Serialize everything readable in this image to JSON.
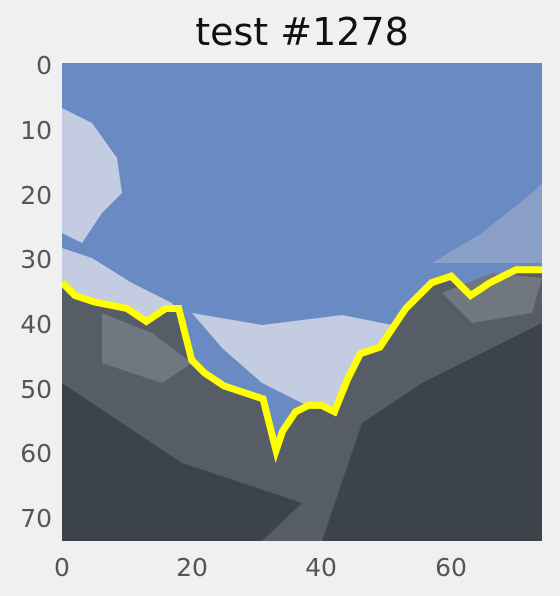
{
  "title": "test #1278",
  "colors": {
    "sky": "#6a8ac3",
    "cloud": "#c3cce0",
    "mountain_light": "#707780",
    "mountain_mid": "#565d66",
    "mountain_dark": "#3d434a",
    "boundary": "#ffff00",
    "background": "#f0f0f0"
  },
  "chart_data": {
    "type": "heatmap",
    "title": "test #1278",
    "xlabel": "",
    "ylabel": "",
    "xlim": [
      0,
      74
    ],
    "ylim": [
      74,
      0
    ],
    "xticks": [
      "0",
      "20",
      "40",
      "60"
    ],
    "yticks": [
      "0",
      "10",
      "20",
      "30",
      "40",
      "50",
      "60",
      "70"
    ],
    "grid": false,
    "boundary_line": [
      [
        0,
        34
      ],
      [
        2,
        36
      ],
      [
        5,
        37
      ],
      [
        10,
        38
      ],
      [
        13,
        40
      ],
      [
        16,
        38
      ],
      [
        18,
        38
      ],
      [
        19,
        42
      ],
      [
        20,
        46
      ],
      [
        22,
        48
      ],
      [
        25,
        50
      ],
      [
        28,
        51
      ],
      [
        31,
        52
      ],
      [
        32,
        56
      ],
      [
        33,
        60
      ],
      [
        34,
        57
      ],
      [
        36,
        54
      ],
      [
        38,
        53
      ],
      [
        40,
        53
      ],
      [
        42,
        54
      ],
      [
        44,
        49
      ],
      [
        46,
        45
      ],
      [
        49,
        44
      ],
      [
        51,
        41
      ],
      [
        53,
        38
      ],
      [
        55,
        36
      ],
      [
        57,
        34
      ],
      [
        60,
        33
      ],
      [
        63,
        36
      ],
      [
        66,
        34
      ],
      [
        70,
        32
      ],
      [
        74,
        32
      ]
    ]
  }
}
